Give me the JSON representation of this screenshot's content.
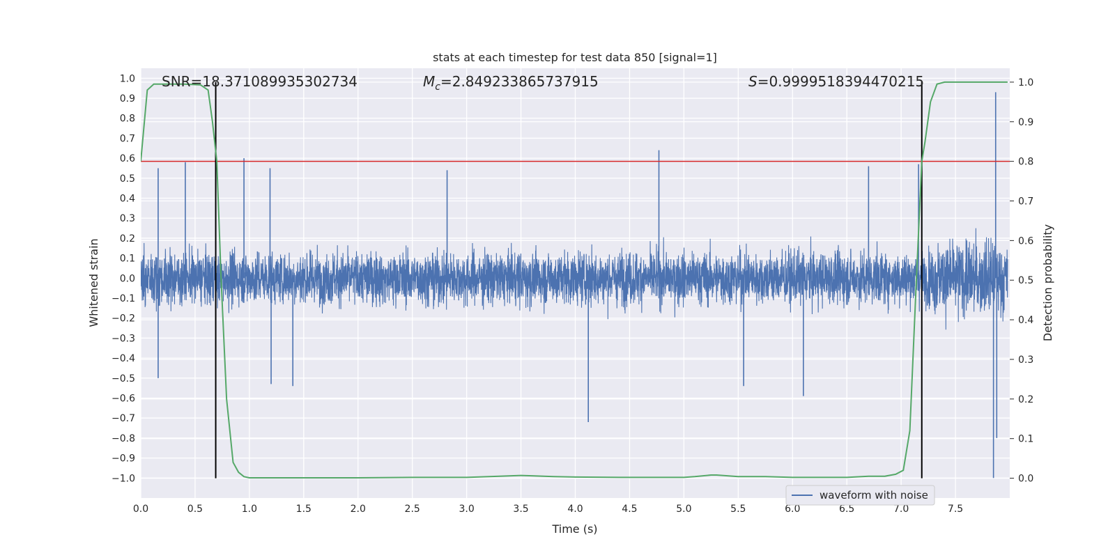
{
  "chart_data": {
    "type": "line",
    "title": "stats at each timestep for test data 850 [signal=1]",
    "xlabel": "Time (s)",
    "ylabel": "Whitened strain",
    "ylabel_right": "Detection probability",
    "xlim": [
      0.0,
      8.0
    ],
    "ylim": [
      -1.1,
      1.05
    ],
    "ylim_right": [
      -0.05,
      1.035
    ],
    "x_ticks": [
      "0.0",
      "0.5",
      "1.0",
      "1.5",
      "2.0",
      "2.5",
      "3.0",
      "3.5",
      "4.0",
      "4.5",
      "5.0",
      "5.5",
      "6.0",
      "6.5",
      "7.0",
      "7.5"
    ],
    "y_ticks": [
      "1.0",
      "0.9",
      "0.8",
      "0.7",
      "0.6",
      "0.5",
      "0.4",
      "0.3",
      "0.2",
      "0.1",
      "0.0",
      "−0.1",
      "−0.2",
      "−0.3",
      "−0.4",
      "−0.5",
      "−0.6",
      "−0.7",
      "−0.8",
      "−0.9",
      "−1.0"
    ],
    "y_ticks_right": [
      "1.0",
      "0.9",
      "0.8",
      "0.7",
      "0.6",
      "0.5",
      "0.4",
      "0.3",
      "0.2",
      "0.1",
      "0.0"
    ],
    "grid": true,
    "legend": {
      "position": "lower-right",
      "entries": [
        "waveform with noise"
      ]
    },
    "annotations": {
      "snr": "SNR=18.371089935302734",
      "mc_symbol": "M",
      "mc_subscript": "c",
      "mc_value": "=2.849233865737915",
      "s_symbol": "S",
      "s_value": "=0.9999518394470215"
    },
    "threshold_line": {
      "axis": "right",
      "y": 0.8,
      "color": "#d62728"
    },
    "vertical_lines": {
      "x": [
        0.69,
        7.19
      ],
      "color": "#000000"
    },
    "series": [
      {
        "name": "waveform with noise",
        "axis": "left",
        "color": "#4c72b0",
        "note_amplitude_envelope": [
          0.2,
          0.28
        ],
        "spikes": [
          {
            "x": 0.16,
            "y": 0.55
          },
          {
            "x": 0.41,
            "y": 0.58
          },
          {
            "x": 0.95,
            "y": 0.6
          },
          {
            "x": 1.19,
            "y": 0.55
          },
          {
            "x": 2.82,
            "y": 0.54
          },
          {
            "x": 4.77,
            "y": 0.64
          },
          {
            "x": 6.7,
            "y": 0.56
          },
          {
            "x": 7.16,
            "y": 0.57
          },
          {
            "x": 7.87,
            "y": 0.93
          },
          {
            "x": 0.16,
            "y": -0.5
          },
          {
            "x": 1.2,
            "y": -0.53
          },
          {
            "x": 1.4,
            "y": -0.54
          },
          {
            "x": 4.12,
            "y": -0.72
          },
          {
            "x": 5.55,
            "y": -0.54
          },
          {
            "x": 6.1,
            "y": -0.59
          },
          {
            "x": 7.85,
            "y": -1.0
          },
          {
            "x": 7.88,
            "y": -0.8
          }
        ]
      },
      {
        "name": "",
        "axis": "right",
        "color": "#55a868",
        "x": [
          0.0,
          0.06,
          0.12,
          0.2,
          0.4,
          0.55,
          0.62,
          0.66,
          0.7,
          0.74,
          0.79,
          0.85,
          0.9,
          0.95,
          1.0,
          1.2,
          1.5,
          2.0,
          2.5,
          3.0,
          3.3,
          3.5,
          3.6,
          3.8,
          4.0,
          4.5,
          5.0,
          5.1,
          5.25,
          5.3,
          5.5,
          5.75,
          6.0,
          6.5,
          6.7,
          6.85,
          6.95,
          7.02,
          7.08,
          7.14,
          7.19,
          7.22,
          7.27,
          7.33,
          7.4,
          7.6,
          7.98
        ],
        "y": [
          0.8,
          0.98,
          0.995,
          0.995,
          0.995,
          0.993,
          0.98,
          0.9,
          0.8,
          0.5,
          0.2,
          0.04,
          0.015,
          0.004,
          0.001,
          0.001,
          0.001,
          0.001,
          0.002,
          0.002,
          0.005,
          0.007,
          0.006,
          0.004,
          0.003,
          0.002,
          0.002,
          0.004,
          0.008,
          0.008,
          0.004,
          0.004,
          0.002,
          0.002,
          0.005,
          0.005,
          0.01,
          0.02,
          0.12,
          0.5,
          0.8,
          0.85,
          0.95,
          0.995,
          1.0,
          1.0,
          1.0
        ]
      }
    ]
  }
}
